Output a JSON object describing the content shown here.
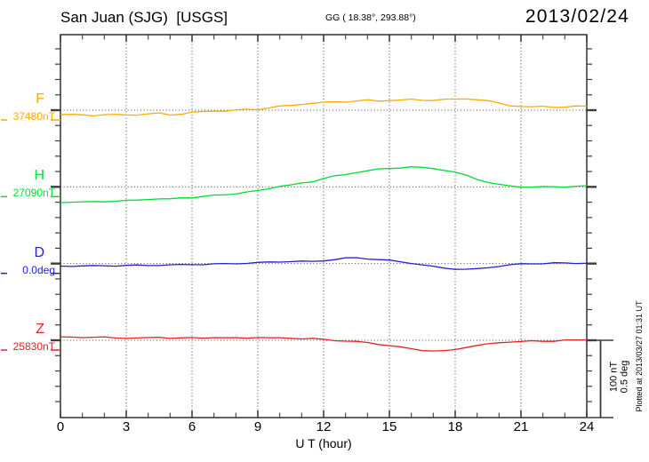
{
  "header": {
    "station_title": "San Juan (SJG)  [USGS]",
    "coords": "GG ( 18.38°, 293.88°)",
    "date": "2013/02/24"
  },
  "xaxis": {
    "label": "U T (hour)",
    "min": 0,
    "max": 24,
    "major_tick_hours": [
      0,
      3,
      6,
      9,
      12,
      15,
      18,
      21,
      24
    ],
    "minor_step_hours": 1
  },
  "scale_bar": {
    "nt": "100 nT",
    "deg": "0.5 deg"
  },
  "plot_note": "Plotted at 2013/03/27 01:31 UT",
  "colors": {
    "F": "#FFAA00",
    "H": "#00DD33",
    "D": "#2222CC",
    "Z": "#E62222",
    "axis": "#3c3c3c",
    "grid": "#444444",
    "text": "#000000",
    "background": "#ffffff"
  },
  "chart_data": {
    "type": "line",
    "title": "San Juan (SJG) [USGS] magnetogram for 2013/02/24",
    "xlabel": "U T (hour)",
    "x_range": [
      0,
      24
    ],
    "grid": "dotted vertical lines every 3 hours; dotted horizontal line at each trace baseline",
    "division": {
      "nT_per_division": 100,
      "deg_per_division": 0.5
    },
    "x": [
      0,
      0.5,
      1,
      1.5,
      2,
      2.5,
      3,
      3.5,
      4,
      4.5,
      5,
      5.5,
      6,
      6.5,
      7,
      7.5,
      8,
      8.5,
      9,
      9.5,
      10,
      10.5,
      11,
      11.5,
      12,
      12.5,
      13,
      13.5,
      14,
      14.5,
      15,
      15.5,
      16,
      16.5,
      17,
      17.5,
      18,
      18.5,
      19,
      19.5,
      20,
      20.5,
      21,
      21.5,
      22,
      22.5,
      23,
      23.5,
      24
    ],
    "series": [
      {
        "name": "F",
        "unit": "nT",
        "baseline": 37480,
        "baseline_label": "37480nT",
        "color": "#FFAA00",
        "units_per_division": 100,
        "values": [
          37474,
          37474,
          37474,
          37473,
          37474,
          37474,
          37474,
          37474,
          37475,
          37476,
          37474,
          37475,
          37477,
          37478,
          37479,
          37479,
          37480,
          37481,
          37481,
          37483,
          37485,
          37486,
          37488,
          37489,
          37490,
          37491,
          37491,
          37492,
          37493,
          37492,
          37493,
          37493,
          37494,
          37493,
          37493,
          37494,
          37494,
          37495,
          37494,
          37492,
          37489,
          37486,
          37485,
          37484,
          37485,
          37484,
          37484,
          37485,
          37485
        ]
      },
      {
        "name": "H",
        "unit": "nT",
        "baseline": 27090,
        "baseline_label": "27090nT",
        "color": "#00DD33",
        "units_per_division": 100,
        "values": [
          27070,
          27070,
          27070,
          27071,
          27071,
          27071,
          27072,
          27073,
          27074,
          27074,
          27074,
          27076,
          27076,
          27077,
          27079,
          27080,
          27081,
          27083,
          27085,
          27088,
          27091,
          27092,
          27095,
          27097,
          27101,
          27104,
          27106,
          27109,
          27111,
          27113,
          27114,
          27115,
          27116,
          27115,
          27114,
          27112,
          27109,
          27105,
          27100,
          27096,
          27093,
          27091,
          27090,
          27090,
          27090,
          27090,
          27090,
          27091,
          27091
        ]
      },
      {
        "name": "D",
        "unit": "deg",
        "baseline": 0.0,
        "baseline_label": "0.0deg",
        "color": "#2222CC",
        "units_per_division": 0.5,
        "values": [
          -0.017,
          -0.016,
          -0.015,
          -0.015,
          -0.014,
          -0.014,
          -0.012,
          -0.012,
          -0.012,
          -0.01,
          -0.009,
          -0.008,
          -0.006,
          -0.005,
          -0.003,
          -0.002,
          0.0,
          0.003,
          0.006,
          0.009,
          0.012,
          0.014,
          0.014,
          0.014,
          0.02,
          0.026,
          0.035,
          0.038,
          0.032,
          0.026,
          0.02,
          0.012,
          0.003,
          -0.009,
          -0.02,
          -0.029,
          -0.035,
          -0.038,
          -0.035,
          -0.026,
          -0.017,
          -0.009,
          -0.003,
          0.0,
          0.0,
          0.003,
          0.003,
          0.003,
          0.003
        ]
      },
      {
        "name": "Z",
        "unit": "nT",
        "baseline": 25830,
        "baseline_label": "25830nT",
        "color": "#E62222",
        "units_per_division": 100,
        "values": [
          25834,
          25834,
          25834,
          25834,
          25834,
          25833,
          25833,
          25833,
          25833,
          25834,
          25833,
          25833,
          25833,
          25833,
          25834,
          25833,
          25833,
          25833,
          25834,
          25833,
          25833,
          25833,
          25832,
          25832,
          25831,
          25830,
          25829,
          25828,
          25827,
          25825,
          25823,
          25821,
          25819,
          25817,
          25816,
          25816,
          25818,
          25821,
          25823,
          25825,
          25827,
          25828,
          25828,
          25829,
          25829,
          25829,
          25830,
          25830,
          25831
        ]
      }
    ]
  }
}
